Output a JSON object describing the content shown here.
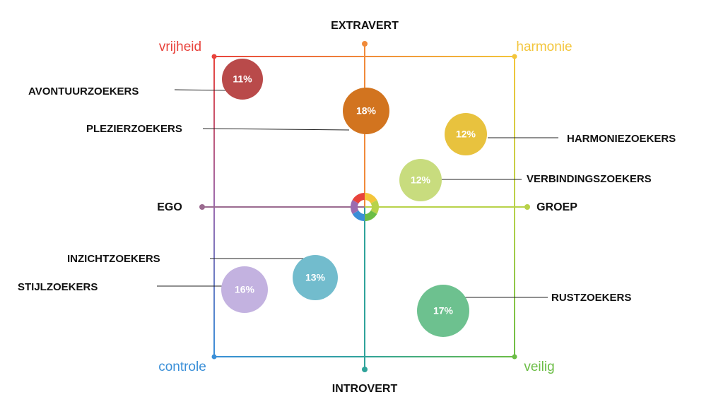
{
  "axes": {
    "top": "EXTRAVERT",
    "bottom": "INTROVERT",
    "left": "EGO",
    "right": "GROEP"
  },
  "corners": {
    "top_left": "vrijheid",
    "top_right": "harmonie",
    "bottom_left": "controle",
    "bottom_right": "veilig"
  },
  "segments": [
    {
      "label": "AVONTUURZOEKERS",
      "percent": "11%"
    },
    {
      "label": "PLEZIERZOEKERS",
      "percent": "18%"
    },
    {
      "label": "HARMONIEZOEKERS",
      "percent": "12%"
    },
    {
      "label": "VERBINDINGSZOEKERS",
      "percent": "12%"
    },
    {
      "label": "INZICHTZOEKERS",
      "percent": "13%"
    },
    {
      "label": "STIJLZOEKERS",
      "percent": "16%"
    },
    {
      "label": "RUSTZOEKERS",
      "percent": "17%"
    }
  ]
}
